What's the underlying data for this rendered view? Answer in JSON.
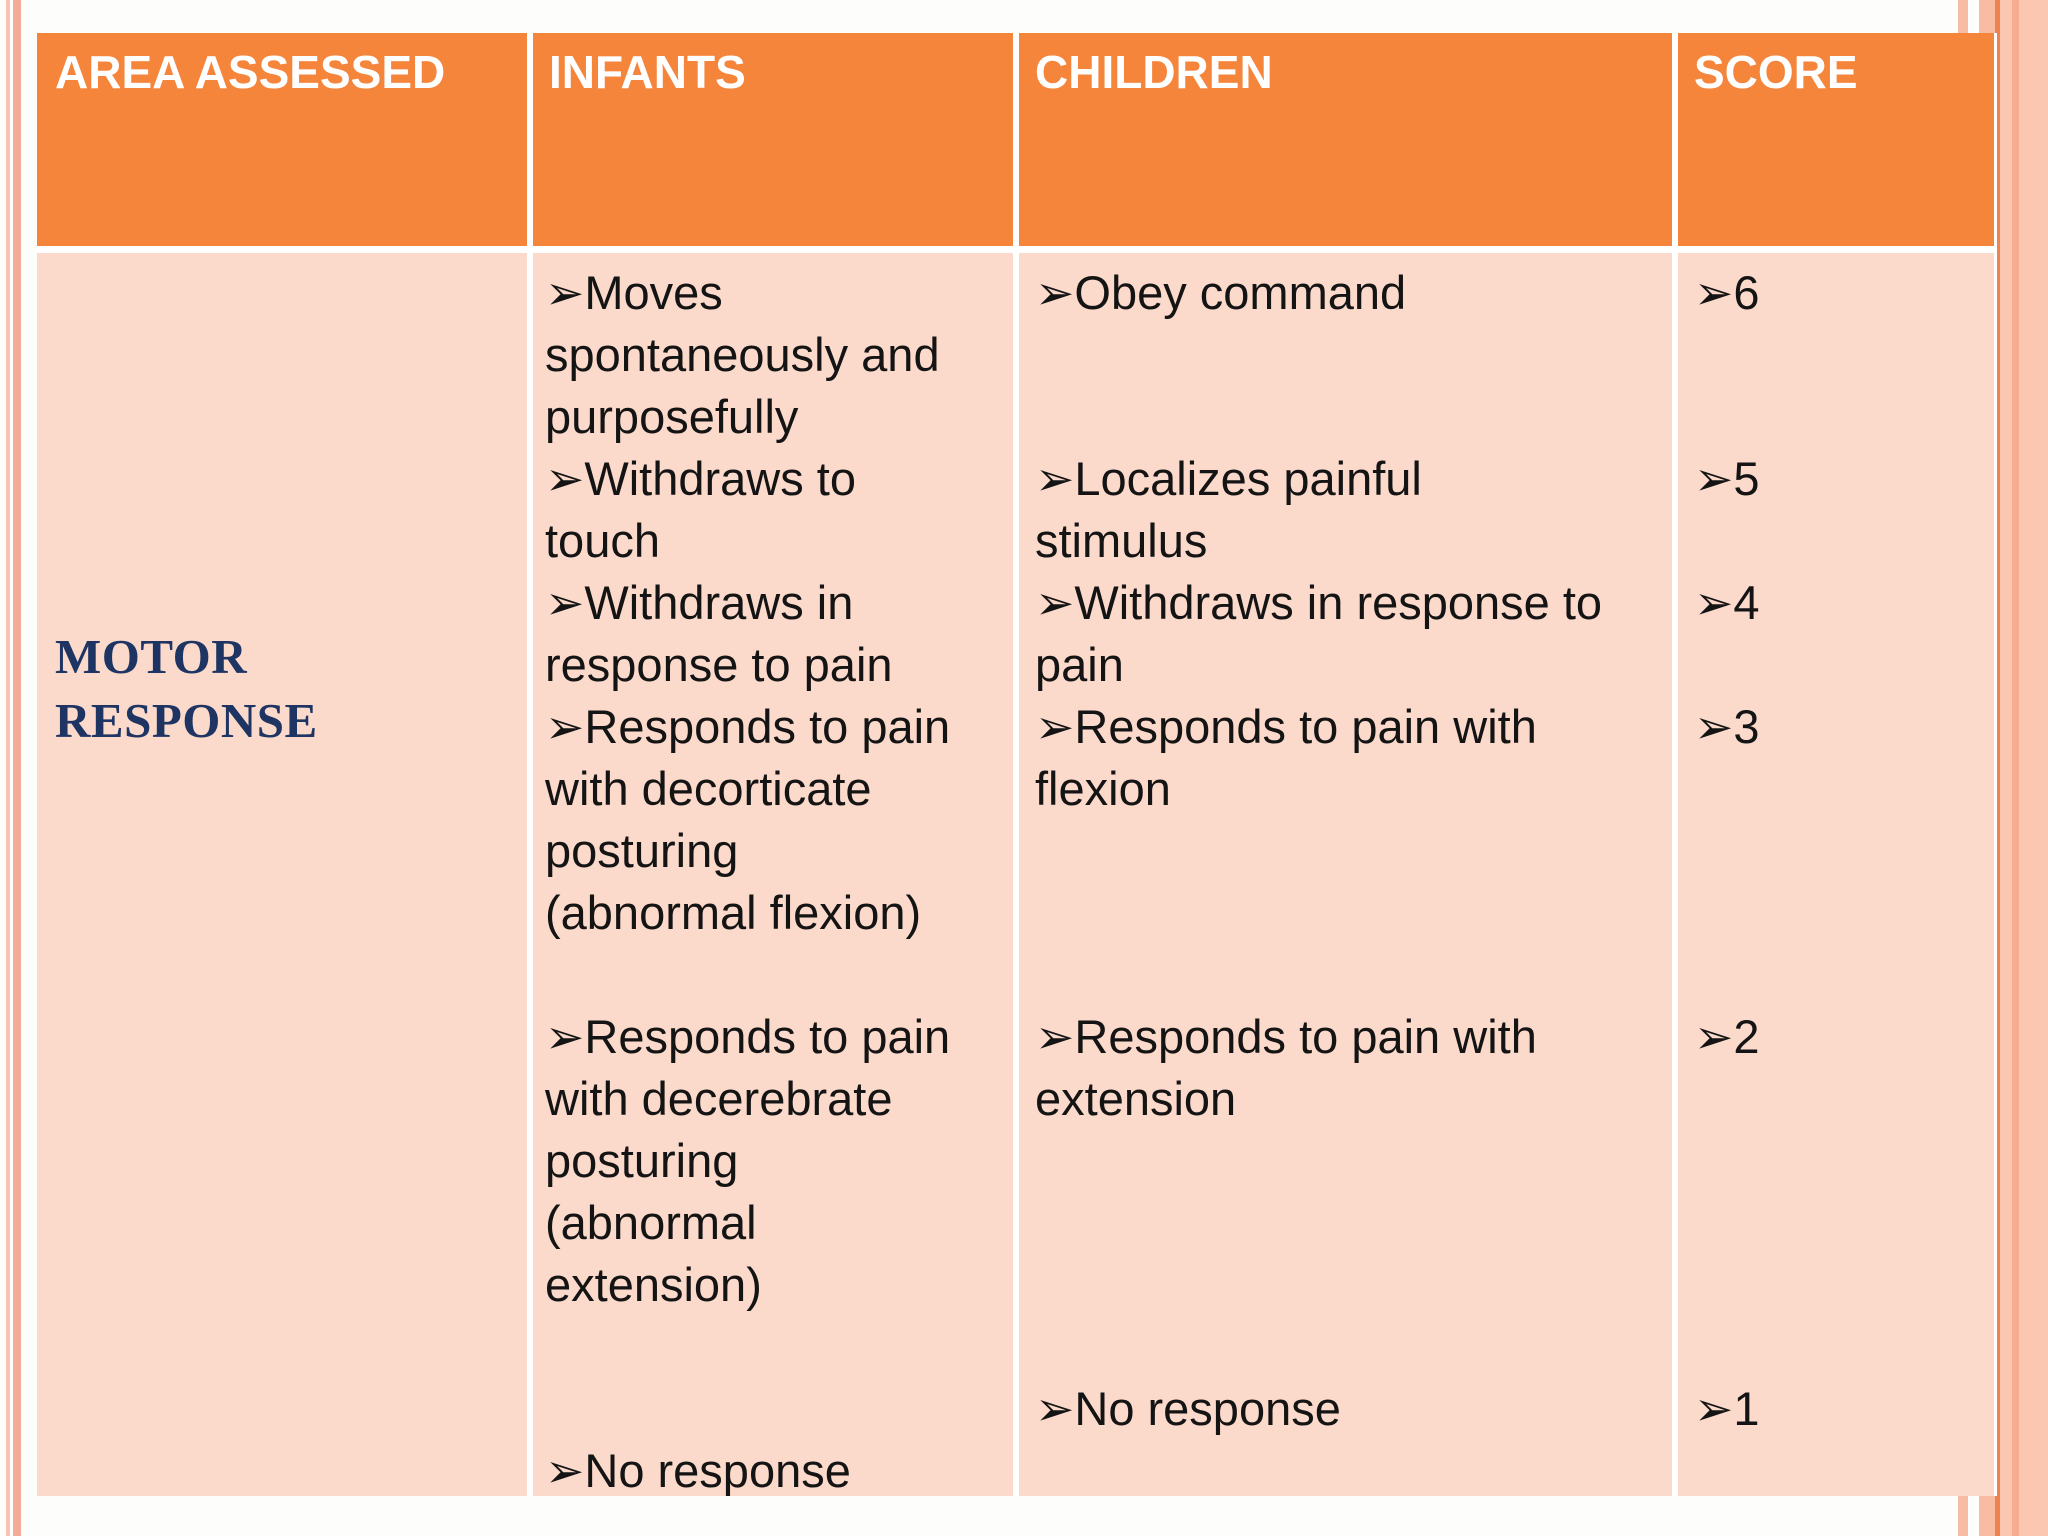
{
  "colors": {
    "page_bg": "#FDFDFB",
    "header_bg": "#F6853C",
    "body_bg": "#FBD9CB",
    "body_text": "#141414",
    "area_text": "#1E3563",
    "left_stripe_1": "#F8C3B2",
    "left_stripe_2": "#F2AC97",
    "right_stripe": "#F8BBA4",
    "right_dark_line": "#EE8350",
    "right_band": "#FBC7B1",
    "right_band_inner": "#F6AC8E"
  },
  "table": {
    "headers": [
      {
        "label": "AREA ASSESSED"
      },
      {
        "label": "INFANTS"
      },
      {
        "label": "CHILDREN"
      },
      {
        "label": "SCORE"
      }
    ],
    "body_row": {
      "area_label": "MOTOR RESPONSE",
      "infants_lines": [
        "➢Moves",
        "spontaneously and",
        "purposefully",
        "➢Withdraws to",
        "touch",
        "➢Withdraws in",
        "response to pain",
        "➢Responds to pain",
        "with decorticate",
        "posturing",
        "(abnormal flexion)",
        "",
        "➢Responds to pain",
        "with decerebrate",
        "posturing",
        "(abnormal",
        "extension)",
        "",
        "",
        "➢No response"
      ],
      "children_lines": [
        "➢Obey command",
        "",
        "",
        "➢Localizes painful",
        "stimulus",
        "➢Withdraws in response to",
        "pain",
        "➢Responds to pain with",
        "flexion",
        "",
        "",
        "",
        "➢Responds to pain with",
        "extension",
        "",
        "",
        "",
        "",
        "➢No response",
        ""
      ],
      "score_lines": [
        "➢6",
        "",
        "",
        "➢5",
        "",
        "➢4",
        "",
        "➢3",
        "",
        "",
        "",
        "",
        "➢2",
        "",
        "",
        "",
        "",
        "",
        "➢1",
        ""
      ]
    }
  }
}
